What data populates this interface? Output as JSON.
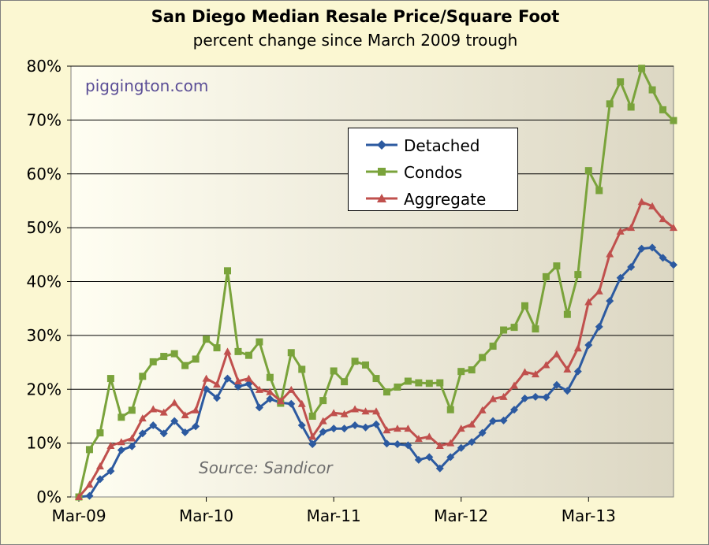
{
  "chart_data": {
    "type": "line",
    "title": "San Diego Median Resale Price/Square Foot",
    "subtitle": "percent change since March 2009 trough",
    "watermark": "piggington.com",
    "source": "Source:  Sandicor",
    "ylim": [
      0,
      80
    ],
    "yticks": [
      "0%",
      "10%",
      "20%",
      "30%",
      "40%",
      "50%",
      "60%",
      "70%",
      "80%"
    ],
    "ytick_values": [
      0,
      10,
      20,
      30,
      40,
      50,
      60,
      70,
      80
    ],
    "x_start": "2009-03",
    "xticks": [
      "Mar-09",
      "Mar-10",
      "Mar-11",
      "Mar-12",
      "Mar-13"
    ],
    "grid": true,
    "legend_position": "upper-center",
    "background": "#fbf7d2",
    "series": [
      {
        "name": "Detached",
        "color": "#2c5aa0",
        "marker": "diamond",
        "values": [
          0,
          0.2,
          3.3,
          4.8,
          8.7,
          9.4,
          11.8,
          13.3,
          11.8,
          14.1,
          12.0,
          13.1,
          20.0,
          18.4,
          22.0,
          20.5,
          21.0,
          16.6,
          18.2,
          17.5,
          17.3,
          13.3,
          9.8,
          12.1,
          12.7,
          12.7,
          13.3,
          12.9,
          13.5,
          9.9,
          9.8,
          9.6,
          6.9,
          7.4,
          5.3,
          7.4,
          9.1,
          10.2,
          11.9,
          14.1,
          14.2,
          16.2,
          18.3,
          18.6,
          18.5,
          20.8,
          19.7,
          23.3,
          28.2,
          31.6,
          36.4,
          40.7,
          42.7,
          46.1,
          46.3,
          44.4,
          43.1
        ]
      },
      {
        "name": "Condos",
        "color": "#7aa33b",
        "marker": "square",
        "values": [
          0,
          8.8,
          11.9,
          22.0,
          14.8,
          16.1,
          22.4,
          25.1,
          26.1,
          26.6,
          24.4,
          25.6,
          29.3,
          27.7,
          42.0,
          27.0,
          26.3,
          28.8,
          22.2,
          17.4,
          26.8,
          23.7,
          15.0,
          17.9,
          23.4,
          21.4,
          25.2,
          24.5,
          22.0,
          19.5,
          20.4,
          21.5,
          21.2,
          21.1,
          21.2,
          16.2,
          23.3,
          23.6,
          25.9,
          28.0,
          31.0,
          31.5,
          35.5,
          31.2,
          40.9,
          42.9,
          33.9,
          41.3,
          60.6,
          56.9,
          73.0,
          77.1,
          72.4,
          79.6,
          75.6,
          71.9,
          69.9
        ]
      },
      {
        "name": "Aggregate",
        "color": "#c0504d",
        "marker": "triangle",
        "values": [
          0,
          2.3,
          5.7,
          9.5,
          10.2,
          10.9,
          14.6,
          16.3,
          15.7,
          17.5,
          15.2,
          16.1,
          22.0,
          20.9,
          27.0,
          21.5,
          22.0,
          19.9,
          19.5,
          17.8,
          19.9,
          17.3,
          11.2,
          14.1,
          15.6,
          15.4,
          16.3,
          15.9,
          15.9,
          12.4,
          12.7,
          12.7,
          10.8,
          11.2,
          9.5,
          10.0,
          12.7,
          13.5,
          16.1,
          18.2,
          18.6,
          20.7,
          23.2,
          22.8,
          24.5,
          26.5,
          23.7,
          27.6,
          36.2,
          38.2,
          45.1,
          49.3,
          50.0,
          54.8,
          54.0,
          51.6,
          50.0
        ]
      }
    ]
  }
}
